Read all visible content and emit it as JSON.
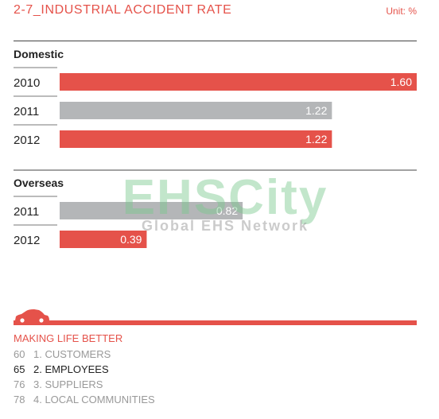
{
  "header": {
    "title": "2-7_INDUSTRIAL ACCIDENT RATE",
    "unit": "Unit: %"
  },
  "chart_data": {
    "type": "bar",
    "orientation": "horizontal",
    "xlim": [
      0,
      1.6
    ],
    "groups": [
      {
        "name": "Domestic",
        "bars": [
          {
            "category": "2010",
            "value": 1.6,
            "label": "1.60",
            "color": "#e5524a"
          },
          {
            "category": "2011",
            "value": 1.22,
            "label": "1.22",
            "color": "#b4b6b8"
          },
          {
            "category": "2012",
            "value": 1.22,
            "label": "1.22",
            "color": "#e5524a"
          }
        ]
      },
      {
        "name": "Overseas",
        "bars": [
          {
            "category": "2011",
            "value": 0.82,
            "label": "0.82",
            "color": "#b4b6b8"
          },
          {
            "category": "2012",
            "value": 0.39,
            "label": "0.39",
            "color": "#e5524a"
          }
        ]
      }
    ]
  },
  "watermark": {
    "main": "EHSCity",
    "sub": "Global EHS Network"
  },
  "footer": {
    "heading": "MAKING LIFE BETTER",
    "items": [
      {
        "page": "60",
        "label": "1. CUSTOMERS",
        "active": false
      },
      {
        "page": "65",
        "label": "2. EMPLOYEES",
        "active": true
      },
      {
        "page": "76",
        "label": "3. SUPPLIERS",
        "active": false
      },
      {
        "page": "78",
        "label": "4. LOCAL COMMUNITIES",
        "active": false
      }
    ]
  },
  "icons": {
    "car": "car-icon"
  }
}
